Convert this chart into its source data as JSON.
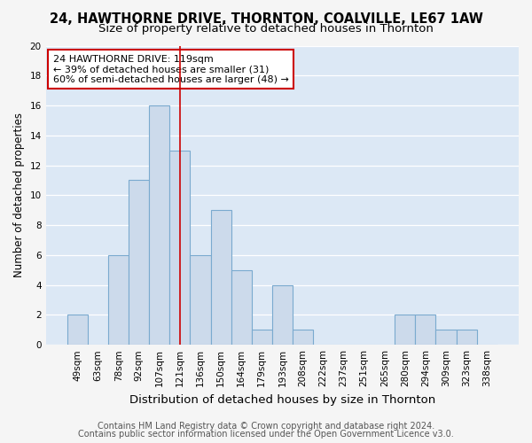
{
  "title": "24, HAWTHORNE DRIVE, THORNTON, COALVILLE, LE67 1AW",
  "subtitle": "Size of property relative to detached houses in Thornton",
  "xlabel": "Distribution of detached houses by size in Thornton",
  "ylabel": "Number of detached properties",
  "categories": [
    "49sqm",
    "63sqm",
    "78sqm",
    "92sqm",
    "107sqm",
    "121sqm",
    "136sqm",
    "150sqm",
    "164sqm",
    "179sqm",
    "193sqm",
    "208sqm",
    "222sqm",
    "237sqm",
    "251sqm",
    "265sqm",
    "280sqm",
    "294sqm",
    "309sqm",
    "323sqm",
    "338sqm"
  ],
  "values": [
    2,
    0,
    6,
    11,
    16,
    13,
    6,
    9,
    5,
    1,
    4,
    1,
    0,
    0,
    0,
    0,
    2,
    2,
    1,
    1,
    0
  ],
  "bar_color": "#ccdaeb",
  "bar_edge_color": "#7aaacf",
  "vline_x_idx": 5,
  "vline_color": "#cc0000",
  "annotation_text": "24 HAWTHORNE DRIVE: 119sqm\n← 39% of detached houses are smaller (31)\n60% of semi-detached houses are larger (48) →",
  "annotation_box_color": "#ffffff",
  "annotation_box_edge": "#cc0000",
  "ylim": [
    0,
    20
  ],
  "yticks": [
    0,
    2,
    4,
    6,
    8,
    10,
    12,
    14,
    16,
    18,
    20
  ],
  "fig_bg_color": "#f5f5f5",
  "plot_bg_color": "#dce8f5",
  "grid_color": "#ffffff",
  "footer_line1": "Contains HM Land Registry data © Crown copyright and database right 2024.",
  "footer_line2": "Contains public sector information licensed under the Open Government Licence v3.0.",
  "title_fontsize": 10.5,
  "subtitle_fontsize": 9.5,
  "xlabel_fontsize": 9.5,
  "ylabel_fontsize": 8.5,
  "tick_fontsize": 7.5,
  "annotation_fontsize": 8,
  "footer_fontsize": 7
}
